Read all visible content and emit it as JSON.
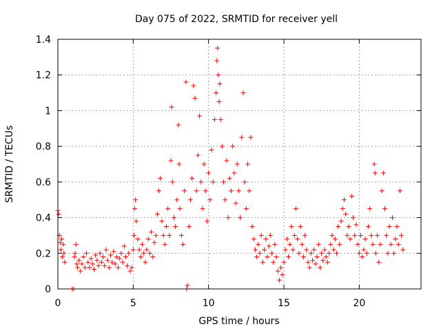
{
  "chart_data": {
    "type": "scatter",
    "title": "Day 075 of 2022, SRMTID for receiver yell",
    "xlabel": "GPS time / hours",
    "ylabel": "SRMTID / TECUs",
    "xlim": [
      0,
      24.1
    ],
    "ylim": [
      0,
      1.4
    ],
    "xticks": [
      0,
      5,
      10,
      15,
      20
    ],
    "xtick_labels": [
      "0",
      "5",
      "10",
      "15",
      "20"
    ],
    "yticks": [
      0,
      0.2,
      0.4,
      0.6,
      0.8,
      1.0,
      1.2,
      1.4
    ],
    "ytick_labels": [
      "0",
      "0.2",
      "0.4",
      "0.6",
      "0.8",
      "1",
      "1.2",
      "1.4"
    ],
    "grid": true,
    "marker": "plus",
    "color": "#ff0000",
    "series": [
      {
        "name": "SRMTID",
        "points": [
          [
            0.0,
            0.44
          ],
          [
            0.05,
            0.42
          ],
          [
            0.1,
            0.3
          ],
          [
            0.15,
            0.26
          ],
          [
            0.2,
            0.22
          ],
          [
            0.25,
            0.28
          ],
          [
            0.3,
            0.18
          ],
          [
            0.35,
            0.25
          ],
          [
            0.4,
            0.2
          ],
          [
            0.45,
            0.15
          ],
          [
            0.95,
            0.0
          ],
          [
            1.05,
            0.0
          ],
          [
            1.1,
            0.18
          ],
          [
            1.15,
            0.2
          ],
          [
            1.2,
            0.25
          ],
          [
            1.25,
            0.14
          ],
          [
            1.3,
            0.12
          ],
          [
            1.4,
            0.16
          ],
          [
            1.5,
            0.1
          ],
          [
            1.6,
            0.14
          ],
          [
            1.7,
            0.18
          ],
          [
            1.8,
            0.12
          ],
          [
            1.9,
            0.2
          ],
          [
            2.0,
            0.15
          ],
          [
            2.1,
            0.12
          ],
          [
            2.2,
            0.17
          ],
          [
            2.3,
            0.14
          ],
          [
            2.4,
            0.11
          ],
          [
            2.5,
            0.19
          ],
          [
            2.6,
            0.16
          ],
          [
            2.7,
            0.13
          ],
          [
            2.8,
            0.2
          ],
          [
            2.9,
            0.15
          ],
          [
            3.0,
            0.18
          ],
          [
            3.1,
            0.13
          ],
          [
            3.2,
            0.22
          ],
          [
            3.3,
            0.16
          ],
          [
            3.4,
            0.12
          ],
          [
            3.5,
            0.19
          ],
          [
            3.6,
            0.15
          ],
          [
            3.7,
            0.21
          ],
          [
            3.8,
            0.14
          ],
          [
            3.9,
            0.18
          ],
          [
            4.0,
            0.12
          ],
          [
            4.1,
            0.17
          ],
          [
            4.2,
            0.2
          ],
          [
            4.3,
            0.15
          ],
          [
            4.4,
            0.24
          ],
          [
            4.5,
            0.18
          ],
          [
            4.6,
            0.13
          ],
          [
            4.7,
            0.2
          ],
          [
            4.8,
            0.1
          ],
          [
            4.9,
            0.12
          ],
          [
            5.0,
            0.22
          ],
          [
            5.05,
            0.3
          ],
          [
            5.1,
            0.45
          ],
          [
            5.15,
            0.5
          ],
          [
            5.2,
            0.38
          ],
          [
            5.3,
            0.28
          ],
          [
            5.4,
            0.22
          ],
          [
            5.5,
            0.18
          ],
          [
            5.6,
            0.25
          ],
          [
            5.7,
            0.2
          ],
          [
            5.8,
            0.15
          ],
          [
            5.9,
            0.22
          ],
          [
            6.0,
            0.28
          ],
          [
            6.1,
            0.2
          ],
          [
            6.2,
            0.32
          ],
          [
            6.3,
            0.18
          ],
          [
            6.4,
            0.26
          ],
          [
            6.5,
            0.3
          ],
          [
            6.6,
            0.42
          ],
          [
            6.7,
            0.55
          ],
          [
            6.8,
            0.62
          ],
          [
            6.9,
            0.38
          ],
          [
            7.0,
            0.3
          ],
          [
            7.1,
            0.25
          ],
          [
            7.2,
            0.35
          ],
          [
            7.3,
            0.45
          ],
          [
            7.4,
            0.3
          ],
          [
            7.5,
            0.72
          ],
          [
            7.55,
            1.02
          ],
          [
            7.6,
            0.6
          ],
          [
            7.7,
            0.4
          ],
          [
            7.8,
            0.35
          ],
          [
            7.9,
            0.5
          ],
          [
            8.0,
            0.92
          ],
          [
            8.05,
            0.7
          ],
          [
            8.1,
            0.45
          ],
          [
            8.2,
            0.3
          ],
          [
            8.3,
            0.25
          ],
          [
            8.4,
            0.55
          ],
          [
            8.5,
            1.16
          ],
          [
            8.55,
            0.0
          ],
          [
            8.6,
            0.02
          ],
          [
            8.7,
            0.35
          ],
          [
            8.8,
            0.5
          ],
          [
            8.9,
            0.62
          ],
          [
            9.0,
            1.14
          ],
          [
            9.1,
            1.07
          ],
          [
            9.2,
            0.55
          ],
          [
            9.3,
            0.75
          ],
          [
            9.4,
            0.97
          ],
          [
            9.5,
            0.6
          ],
          [
            9.6,
            0.45
          ],
          [
            9.7,
            0.7
          ],
          [
            9.8,
            0.55
          ],
          [
            9.9,
            0.38
          ],
          [
            10.0,
            0.65
          ],
          [
            10.1,
            0.5
          ],
          [
            10.2,
            0.78
          ],
          [
            10.3,
            0.6
          ],
          [
            10.4,
            0.95
          ],
          [
            10.5,
            1.1
          ],
          [
            10.55,
            1.28
          ],
          [
            10.6,
            1.35
          ],
          [
            10.65,
            1.2
          ],
          [
            10.7,
            1.05
          ],
          [
            10.75,
            1.15
          ],
          [
            10.8,
            0.95
          ],
          [
            10.9,
            0.8
          ],
          [
            11.0,
            0.6
          ],
          [
            11.1,
            0.5
          ],
          [
            11.2,
            0.72
          ],
          [
            11.3,
            0.4
          ],
          [
            11.4,
            0.62
          ],
          [
            11.5,
            0.55
          ],
          [
            11.6,
            0.8
          ],
          [
            11.7,
            0.65
          ],
          [
            11.8,
            0.48
          ],
          [
            11.9,
            0.7
          ],
          [
            12.0,
            0.55
          ],
          [
            12.1,
            0.4
          ],
          [
            12.2,
            0.85
          ],
          [
            12.3,
            1.1
          ],
          [
            12.4,
            0.6
          ],
          [
            12.5,
            0.45
          ],
          [
            12.6,
            0.7
          ],
          [
            12.7,
            0.55
          ],
          [
            12.8,
            0.85
          ],
          [
            12.9,
            0.35
          ],
          [
            13.0,
            0.28
          ],
          [
            13.1,
            0.22
          ],
          [
            13.2,
            0.18
          ],
          [
            13.3,
            0.25
          ],
          [
            13.4,
            0.2
          ],
          [
            13.5,
            0.3
          ],
          [
            13.6,
            0.15
          ],
          [
            13.7,
            0.22
          ],
          [
            13.8,
            0.28
          ],
          [
            13.9,
            0.18
          ],
          [
            14.0,
            0.24
          ],
          [
            14.1,
            0.3
          ],
          [
            14.2,
            0.2
          ],
          [
            14.3,
            0.15
          ],
          [
            14.4,
            0.25
          ],
          [
            14.5,
            0.18
          ],
          [
            14.6,
            0.1
          ],
          [
            14.7,
            0.05
          ],
          [
            14.8,
            0.12
          ],
          [
            14.9,
            0.08
          ],
          [
            15.0,
            0.15
          ],
          [
            15.1,
            0.22
          ],
          [
            15.2,
            0.28
          ],
          [
            15.3,
            0.18
          ],
          [
            15.4,
            0.25
          ],
          [
            15.5,
            0.35
          ],
          [
            15.6,
            0.22
          ],
          [
            15.7,
            0.3
          ],
          [
            15.8,
            0.45
          ],
          [
            15.9,
            0.28
          ],
          [
            16.0,
            0.2
          ],
          [
            16.1,
            0.35
          ],
          [
            16.2,
            0.25
          ],
          [
            16.3,
            0.18
          ],
          [
            16.4,
            0.3
          ],
          [
            16.5,
            0.22
          ],
          [
            16.6,
            0.15
          ],
          [
            16.7,
            0.12
          ],
          [
            16.8,
            0.2
          ],
          [
            16.9,
            0.16
          ],
          [
            17.0,
            0.22
          ],
          [
            17.1,
            0.14
          ],
          [
            17.2,
            0.18
          ],
          [
            17.3,
            0.25
          ],
          [
            17.4,
            0.12
          ],
          [
            17.5,
            0.2
          ],
          [
            17.6,
            0.16
          ],
          [
            17.7,
            0.22
          ],
          [
            17.8,
            0.18
          ],
          [
            17.9,
            0.15
          ],
          [
            18.0,
            0.2
          ],
          [
            18.1,
            0.25
          ],
          [
            18.2,
            0.3
          ],
          [
            18.3,
            0.22
          ],
          [
            18.4,
            0.28
          ],
          [
            18.5,
            0.2
          ],
          [
            18.6,
            0.35
          ],
          [
            18.7,
            0.25
          ],
          [
            18.8,
            0.38
          ],
          [
            18.9,
            0.45
          ],
          [
            19.0,
            0.5
          ],
          [
            19.1,
            0.42
          ],
          [
            19.2,
            0.3
          ],
          [
            19.3,
            0.35
          ],
          [
            19.4,
            0.28
          ],
          [
            19.5,
            0.52
          ],
          [
            19.6,
            0.4
          ],
          [
            19.7,
            0.3
          ],
          [
            19.8,
            0.36
          ],
          [
            19.9,
            0.25
          ],
          [
            20.0,
            0.2
          ],
          [
            20.1,
            0.3
          ],
          [
            20.2,
            0.18
          ],
          [
            20.3,
            0.22
          ],
          [
            20.4,
            0.28
          ],
          [
            20.5,
            0.2
          ],
          [
            20.6,
            0.35
          ],
          [
            20.7,
            0.45
          ],
          [
            20.8,
            0.3
          ],
          [
            20.9,
            0.25
          ],
          [
            21.0,
            0.7
          ],
          [
            21.05,
            0.65
          ],
          [
            21.1,
            0.2
          ],
          [
            21.2,
            0.3
          ],
          [
            21.3,
            0.15
          ],
          [
            21.4,
            0.25
          ],
          [
            21.5,
            0.55
          ],
          [
            21.6,
            0.65
          ],
          [
            21.7,
            0.45
          ],
          [
            21.8,
            0.3
          ],
          [
            21.9,
            0.2
          ],
          [
            22.0,
            0.35
          ],
          [
            22.1,
            0.25
          ],
          [
            22.2,
            0.4
          ],
          [
            22.3,
            0.2
          ],
          [
            22.4,
            0.28
          ],
          [
            22.5,
            0.35
          ],
          [
            22.6,
            0.25
          ],
          [
            22.7,
            0.55
          ],
          [
            22.8,
            0.3
          ],
          [
            22.9,
            0.22
          ]
        ]
      }
    ]
  }
}
